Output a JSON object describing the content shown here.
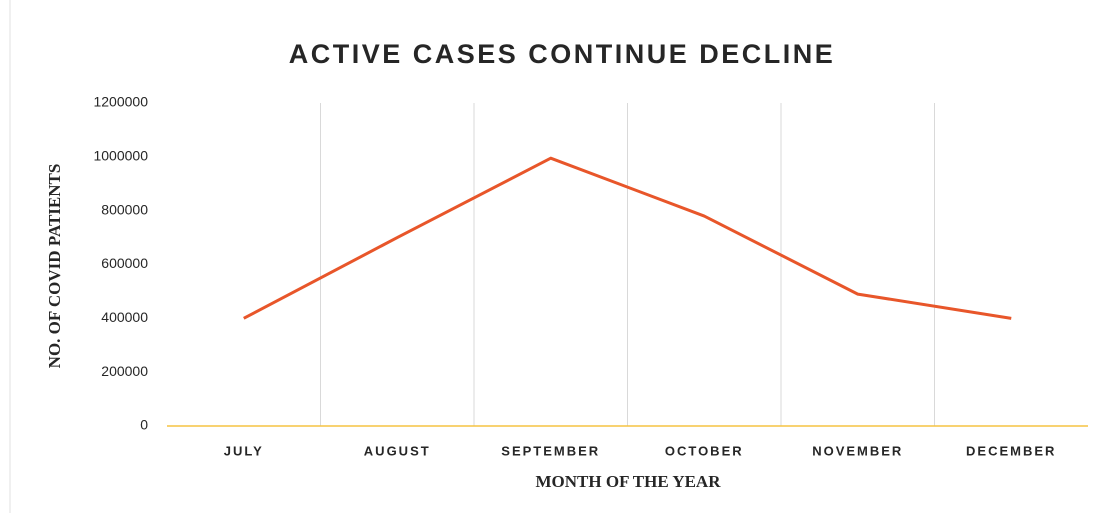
{
  "chart_data": {
    "type": "line",
    "title": "ACTIVE CASES CONTINUE DECLINE",
    "x_label": "MONTH OF THE YEAR",
    "y_label": "NO. OF COVID PATIENTS",
    "categories": [
      "JULY",
      "AUGUST",
      "SEPTEMBER",
      "OCTOBER",
      "NOVEMBER",
      "DECEMBER"
    ],
    "series": [
      {
        "name": "Active cases",
        "color": "#e8562a",
        "values": [
          400000,
          700000,
          995000,
          780000,
          490000,
          400000
        ]
      }
    ],
    "ylim": [
      0,
      1200000
    ],
    "yticks": [
      0,
      200000,
      400000,
      600000,
      800000,
      1000000,
      1200000
    ],
    "axis_color": "#f5c342"
  }
}
